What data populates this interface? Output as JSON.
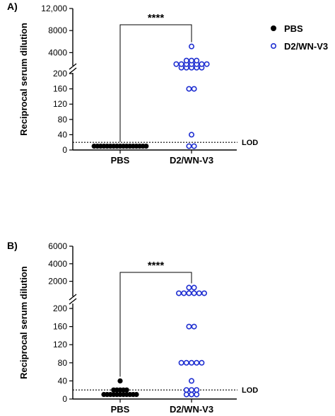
{
  "legend": {
    "position": "top-right",
    "items": [
      {
        "label": "PBS",
        "marker": "filled-circle",
        "color": "#000000"
      },
      {
        "label": "D2/WN-V3",
        "marker": "open-circle",
        "color": "#1f2fd1"
      }
    ]
  },
  "chart_data": [
    {
      "panel": "A)",
      "type": "scatter",
      "ylabel": "Reciprocal serum dilution",
      "categories": [
        "PBS",
        "D2/WN-V3"
      ],
      "y_scale": "broken",
      "upper_ticks": [
        "4000",
        "8000",
        "12,000"
      ],
      "lower_ticks": [
        "0",
        "40",
        "80",
        "120",
        "160",
        "200"
      ],
      "ylim_lower": [
        0,
        200
      ],
      "ylim_upper": [
        2000,
        12000
      ],
      "significance": "****",
      "lod": {
        "value": 20,
        "label": "LOD"
      },
      "series": [
        {
          "name": "PBS",
          "category": "PBS",
          "values": [
            10,
            10,
            10,
            10,
            10,
            10,
            10,
            10,
            10,
            10,
            10,
            10,
            10,
            10,
            10,
            10,
            10
          ]
        },
        {
          "name": "D2/WN-V3",
          "category": "D2/WN-V3",
          "values": [
            5120,
            2560,
            2560,
            2560,
            1920,
            1920,
            1920,
            1920,
            1920,
            1920,
            1920,
            1280,
            1280,
            1280,
            1280,
            1280,
            160,
            160,
            40,
            10,
            10
          ]
        }
      ]
    },
    {
      "panel": "B)",
      "type": "scatter",
      "ylabel": "Reciprocal serum dilution",
      "categories": [
        "PBS",
        "D2/WN-V3"
      ],
      "y_scale": "broken",
      "upper_ticks": [
        "2000",
        "4000",
        "6000"
      ],
      "lower_ticks": [
        "0",
        "40",
        "80",
        "120",
        "160",
        "200"
      ],
      "ylim_lower": [
        0,
        200
      ],
      "ylim_upper": [
        1000,
        6000
      ],
      "significance": "****",
      "lod": {
        "value": 20,
        "label": "LOD"
      },
      "series": [
        {
          "name": "PBS",
          "category": "PBS",
          "values": [
            40,
            20,
            20,
            20,
            20,
            20,
            10,
            10,
            10,
            10,
            10,
            10,
            10,
            10,
            10,
            10,
            10
          ]
        },
        {
          "name": "D2/WN-V3",
          "category": "D2/WN-V3",
          "values": [
            1280,
            1280,
            640,
            640,
            640,
            640,
            640,
            640,
            160,
            160,
            80,
            80,
            80,
            80,
            80,
            40,
            20,
            20,
            20,
            10,
            10,
            10
          ]
        }
      ]
    }
  ]
}
